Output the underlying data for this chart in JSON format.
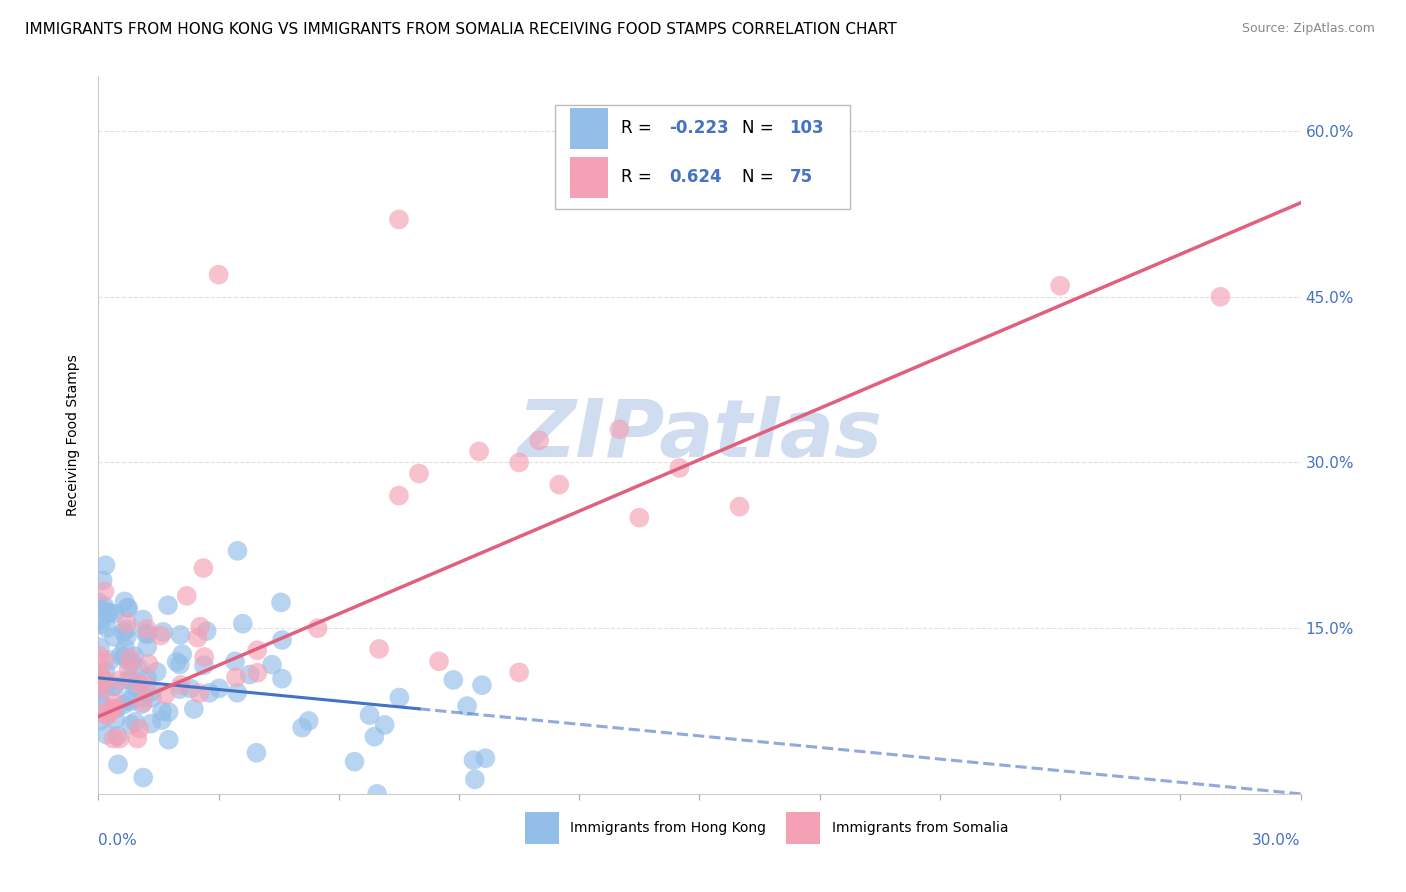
{
  "title": "IMMIGRANTS FROM HONG KONG VS IMMIGRANTS FROM SOMALIA RECEIVING FOOD STAMPS CORRELATION CHART",
  "source": "Source: ZipAtlas.com",
  "ylabel": "Receiving Food Stamps",
  "xlim": [
    0.0,
    30.0
  ],
  "ylim": [
    0.0,
    65.0
  ],
  "yticks": [
    0.0,
    15.0,
    30.0,
    45.0,
    60.0
  ],
  "hk_R": -0.223,
  "hk_N": 103,
  "som_R": 0.624,
  "som_N": 75,
  "hk_color": "#92BEE8",
  "som_color": "#F4A0B5",
  "hk_line_color": "#4472C4",
  "som_line_color": "#E06080",
  "watermark_text": "ZIPatlas",
  "watermark_color": "#D0DCF0",
  "background_color": "#FFFFFF",
  "grid_color": "#DDDDDD",
  "title_fontsize": 11,
  "source_fontsize": 9,
  "label_fontsize": 10,
  "tick_fontsize": 11,
  "legend_value_color": "#4472C4",
  "axis_label_color": "#4472C4"
}
